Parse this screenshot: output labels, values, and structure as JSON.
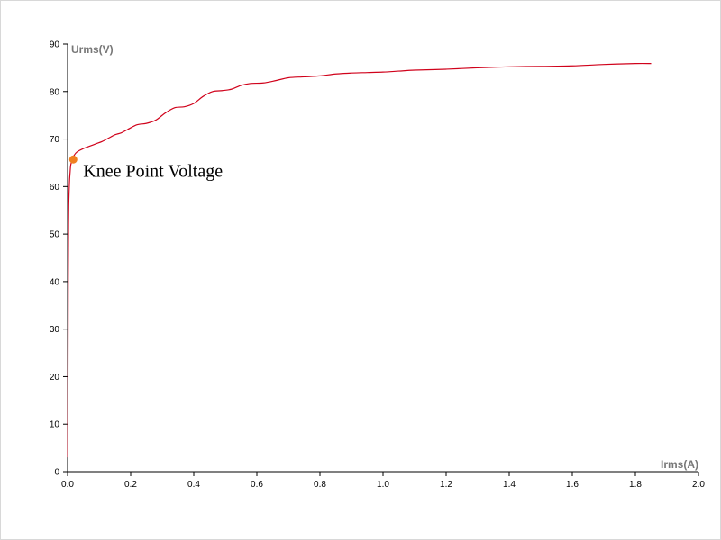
{
  "chart_data": {
    "type": "line",
    "title": "",
    "xlabel": "Irms(A)",
    "ylabel": "Urms(V)",
    "xlim": [
      0,
      2.0
    ],
    "ylim": [
      0,
      90
    ],
    "x_ticks": [
      "0.0",
      "0.2",
      "0.4",
      "0.6",
      "0.8",
      "1.0",
      "1.2",
      "1.4",
      "1.6",
      "1.8",
      "2.0"
    ],
    "y_ticks": [
      "0",
      "10",
      "20",
      "30",
      "40",
      "50",
      "60",
      "70",
      "80",
      "90"
    ],
    "grid": false,
    "legend": "none",
    "series": [
      {
        "color": "#d0021b",
        "x": [
          0.0005,
          0.001,
          0.002,
          0.003,
          0.004,
          0.006,
          0.008,
          0.01,
          0.015,
          0.02,
          0.03,
          0.05,
          0.07,
          0.09,
          0.11,
          0.13,
          0.15,
          0.17,
          0.19,
          0.22,
          0.25,
          0.28,
          0.31,
          0.34,
          0.37,
          0.4,
          0.43,
          0.46,
          0.49,
          0.52,
          0.55,
          0.58,
          0.62,
          0.66,
          0.7,
          0.75,
          0.8,
          0.85,
          0.9,
          0.95,
          1.0,
          1.05,
          1.1,
          1.2,
          1.3,
          1.4,
          1.5,
          1.6,
          1.7,
          1.8,
          1.85
        ],
        "y": [
          3,
          15,
          40,
          52,
          57,
          61,
          63,
          64.5,
          65.7,
          66.5,
          67.3,
          68.0,
          68.5,
          69.0,
          69.5,
          70.2,
          70.9,
          71.3,
          72.0,
          73.0,
          73.3,
          74.0,
          75.5,
          76.6,
          76.8,
          77.5,
          79.0,
          80.0,
          80.2,
          80.5,
          81.3,
          81.7,
          81.8,
          82.3,
          82.9,
          83.1,
          83.3,
          83.7,
          83.9,
          84.0,
          84.1,
          84.3,
          84.5,
          84.7,
          85.0,
          85.2,
          85.3,
          85.4,
          85.7,
          85.9,
          85.9
        ]
      }
    ],
    "annotations": [
      {
        "text": "Knee Point Voltage",
        "x": 0.018,
        "y": 65.7,
        "marker_color": "#f08020"
      }
    ]
  }
}
